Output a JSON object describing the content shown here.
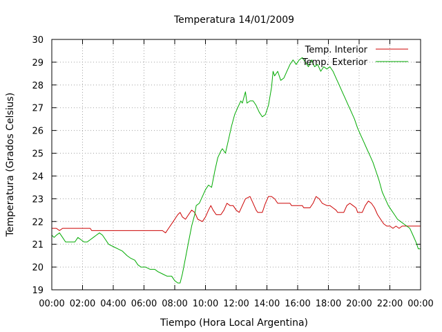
{
  "chart_data": {
    "type": "line",
    "title": "Temperatura 14/01/2009",
    "xlabel": "Tiempo (Hora Local Argentina)",
    "ylabel": "Temperatura (Grados Celsius)",
    "x_ticks": [
      "00:00",
      "02:00",
      "04:00",
      "06:00",
      "08:00",
      "10:00",
      "12:00",
      "14:00",
      "16:00",
      "18:00",
      "20:00",
      "22:00",
      "00:00"
    ],
    "y_ticks": [
      "19",
      "20",
      "21",
      "22",
      "23",
      "24",
      "25",
      "26",
      "27",
      "28",
      "29",
      "30"
    ],
    "xlim": [
      0,
      24
    ],
    "ylim": [
      19,
      30
    ],
    "x_unit": "hours",
    "grid": true,
    "legend_position": "top-right",
    "series": [
      {
        "name": "Temp. Interior",
        "color": "#cc0000",
        "points": [
          [
            0.0,
            21.7
          ],
          [
            0.3,
            21.7
          ],
          [
            0.5,
            21.6
          ],
          [
            0.7,
            21.7
          ],
          [
            1.5,
            21.7
          ],
          [
            2.0,
            21.7
          ],
          [
            2.5,
            21.7
          ],
          [
            2.6,
            21.6
          ],
          [
            4.0,
            21.6
          ],
          [
            6.0,
            21.6
          ],
          [
            7.2,
            21.6
          ],
          [
            7.4,
            21.5
          ],
          [
            7.6,
            21.7
          ],
          [
            7.9,
            22.0
          ],
          [
            8.2,
            22.3
          ],
          [
            8.35,
            22.4
          ],
          [
            8.5,
            22.2
          ],
          [
            8.7,
            22.1
          ],
          [
            8.9,
            22.3
          ],
          [
            9.1,
            22.5
          ],
          [
            9.3,
            22.4
          ],
          [
            9.5,
            22.1
          ],
          [
            9.8,
            22.0
          ],
          [
            10.0,
            22.2
          ],
          [
            10.2,
            22.5
          ],
          [
            10.35,
            22.7
          ],
          [
            10.5,
            22.5
          ],
          [
            10.7,
            22.3
          ],
          [
            11.0,
            22.3
          ],
          [
            11.2,
            22.5
          ],
          [
            11.4,
            22.8
          ],
          [
            11.6,
            22.7
          ],
          [
            11.8,
            22.7
          ],
          [
            12.0,
            22.5
          ],
          [
            12.2,
            22.4
          ],
          [
            12.4,
            22.7
          ],
          [
            12.6,
            23.0
          ],
          [
            12.9,
            23.1
          ],
          [
            13.1,
            22.8
          ],
          [
            13.3,
            22.5
          ],
          [
            13.4,
            22.4
          ],
          [
            13.7,
            22.4
          ],
          [
            13.9,
            22.8
          ],
          [
            14.1,
            23.1
          ],
          [
            14.3,
            23.1
          ],
          [
            14.5,
            23.0
          ],
          [
            14.7,
            22.8
          ],
          [
            15.0,
            22.8
          ],
          [
            15.5,
            22.8
          ],
          [
            15.6,
            22.7
          ],
          [
            16.0,
            22.7
          ],
          [
            16.3,
            22.7
          ],
          [
            16.4,
            22.6
          ],
          [
            16.8,
            22.6
          ],
          [
            17.0,
            22.8
          ],
          [
            17.2,
            23.1
          ],
          [
            17.4,
            23.0
          ],
          [
            17.6,
            22.8
          ],
          [
            17.9,
            22.7
          ],
          [
            18.1,
            22.7
          ],
          [
            18.3,
            22.6
          ],
          [
            18.5,
            22.5
          ],
          [
            18.6,
            22.4
          ],
          [
            19.0,
            22.4
          ],
          [
            19.2,
            22.7
          ],
          [
            19.4,
            22.8
          ],
          [
            19.6,
            22.7
          ],
          [
            19.8,
            22.6
          ],
          [
            19.9,
            22.4
          ],
          [
            20.2,
            22.4
          ],
          [
            20.4,
            22.7
          ],
          [
            20.6,
            22.9
          ],
          [
            20.8,
            22.8
          ],
          [
            21.0,
            22.6
          ],
          [
            21.2,
            22.3
          ],
          [
            21.4,
            22.1
          ],
          [
            21.6,
            21.9
          ],
          [
            21.8,
            21.8
          ],
          [
            22.0,
            21.8
          ],
          [
            22.2,
            21.7
          ],
          [
            22.4,
            21.8
          ],
          [
            22.6,
            21.7
          ],
          [
            22.8,
            21.8
          ],
          [
            23.0,
            21.8
          ],
          [
            24.0,
            21.8
          ]
        ]
      },
      {
        "name": "Temp. Exterior",
        "color": "#00aa00",
        "points": [
          [
            0.0,
            21.4
          ],
          [
            0.15,
            21.3
          ],
          [
            0.3,
            21.4
          ],
          [
            0.5,
            21.5
          ],
          [
            0.7,
            21.3
          ],
          [
            0.9,
            21.1
          ],
          [
            1.2,
            21.1
          ],
          [
            1.5,
            21.1
          ],
          [
            1.7,
            21.3
          ],
          [
            1.9,
            21.2
          ],
          [
            2.1,
            21.1
          ],
          [
            2.3,
            21.1
          ],
          [
            2.5,
            21.2
          ],
          [
            2.7,
            21.3
          ],
          [
            2.9,
            21.4
          ],
          [
            3.1,
            21.5
          ],
          [
            3.3,
            21.4
          ],
          [
            3.5,
            21.2
          ],
          [
            3.7,
            21.0
          ],
          [
            4.0,
            20.9
          ],
          [
            4.3,
            20.8
          ],
          [
            4.6,
            20.7
          ],
          [
            4.9,
            20.5
          ],
          [
            5.1,
            20.4
          ],
          [
            5.4,
            20.3
          ],
          [
            5.6,
            20.1
          ],
          [
            5.8,
            20.0
          ],
          [
            6.1,
            20.0
          ],
          [
            6.4,
            19.9
          ],
          [
            6.7,
            19.9
          ],
          [
            6.9,
            19.8
          ],
          [
            7.2,
            19.7
          ],
          [
            7.5,
            19.6
          ],
          [
            7.8,
            19.6
          ],
          [
            8.0,
            19.4
          ],
          [
            8.2,
            19.3
          ],
          [
            8.35,
            19.3
          ],
          [
            8.5,
            19.7
          ],
          [
            8.7,
            20.4
          ],
          [
            8.9,
            21.1
          ],
          [
            9.1,
            21.8
          ],
          [
            9.3,
            22.3
          ],
          [
            9.4,
            22.7
          ],
          [
            9.6,
            22.8
          ],
          [
            9.8,
            23.1
          ],
          [
            10.0,
            23.4
          ],
          [
            10.2,
            23.6
          ],
          [
            10.4,
            23.5
          ],
          [
            10.6,
            24.2
          ],
          [
            10.8,
            24.8
          ],
          [
            11.0,
            25.1
          ],
          [
            11.1,
            25.2
          ],
          [
            11.3,
            25.0
          ],
          [
            11.5,
            25.6
          ],
          [
            11.7,
            26.2
          ],
          [
            11.9,
            26.7
          ],
          [
            12.1,
            27.0
          ],
          [
            12.3,
            27.3
          ],
          [
            12.4,
            27.2
          ],
          [
            12.6,
            27.7
          ],
          [
            12.7,
            27.2
          ],
          [
            12.9,
            27.3
          ],
          [
            13.1,
            27.3
          ],
          [
            13.3,
            27.1
          ],
          [
            13.5,
            26.8
          ],
          [
            13.7,
            26.6
          ],
          [
            13.9,
            26.7
          ],
          [
            14.1,
            27.1
          ],
          [
            14.3,
            27.9
          ],
          [
            14.4,
            28.6
          ],
          [
            14.5,
            28.4
          ],
          [
            14.7,
            28.6
          ],
          [
            14.9,
            28.2
          ],
          [
            15.1,
            28.3
          ],
          [
            15.3,
            28.6
          ],
          [
            15.5,
            28.9
          ],
          [
            15.7,
            29.1
          ],
          [
            15.9,
            28.9
          ],
          [
            16.1,
            29.1
          ],
          [
            16.3,
            29.2
          ],
          [
            16.5,
            29.0
          ],
          [
            16.7,
            28.8
          ],
          [
            16.9,
            29.1
          ],
          [
            17.1,
            28.8
          ],
          [
            17.3,
            28.9
          ],
          [
            17.5,
            28.6
          ],
          [
            17.7,
            28.8
          ],
          [
            17.9,
            28.7
          ],
          [
            18.1,
            28.8
          ],
          [
            18.3,
            28.6
          ],
          [
            18.5,
            28.3
          ],
          [
            18.7,
            28.0
          ],
          [
            18.9,
            27.7
          ],
          [
            19.1,
            27.4
          ],
          [
            19.3,
            27.1
          ],
          [
            19.5,
            26.8
          ],
          [
            19.7,
            26.5
          ],
          [
            19.9,
            26.1
          ],
          [
            20.1,
            25.8
          ],
          [
            20.3,
            25.5
          ],
          [
            20.5,
            25.2
          ],
          [
            20.7,
            24.9
          ],
          [
            20.9,
            24.6
          ],
          [
            21.1,
            24.2
          ],
          [
            21.3,
            23.8
          ],
          [
            21.5,
            23.3
          ],
          [
            21.7,
            23.0
          ],
          [
            21.9,
            22.7
          ],
          [
            22.1,
            22.5
          ],
          [
            22.3,
            22.3
          ],
          [
            22.5,
            22.1
          ],
          [
            22.7,
            22.0
          ],
          [
            22.9,
            21.9
          ],
          [
            23.1,
            21.8
          ],
          [
            23.3,
            21.7
          ],
          [
            23.5,
            21.4
          ],
          [
            23.7,
            21.1
          ],
          [
            23.85,
            20.8
          ],
          [
            24.0,
            20.8
          ]
        ]
      }
    ]
  }
}
